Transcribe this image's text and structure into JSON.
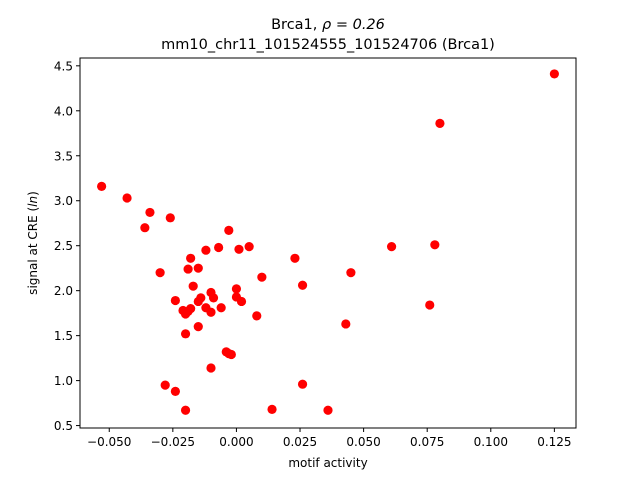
{
  "chart_data": {
    "type": "scatter",
    "title_line1_prefix": "Brca1, ",
    "title_line1_rho": "ρ = 0.26",
    "title_line2": "mm10_chr11_101524555_101524706 (Brca1)",
    "xlabel": "motif activity",
    "ylabel_prefix": "signal at CRE (",
    "ylabel_italic": "ln",
    "ylabel_suffix": ")",
    "xlim": [
      -0.0615,
      0.1335
    ],
    "ylim": [
      0.473,
      4.587
    ],
    "xticks": [
      {
        "value": -0.05,
        "label": "−0.050"
      },
      {
        "value": -0.025,
        "label": "−0.025"
      },
      {
        "value": 0.0,
        "label": "0.000"
      },
      {
        "value": 0.025,
        "label": "0.025"
      },
      {
        "value": 0.05,
        "label": "0.050"
      },
      {
        "value": 0.075,
        "label": "0.075"
      },
      {
        "value": 0.1,
        "label": "0.100"
      },
      {
        "value": 0.125,
        "label": "0.125"
      }
    ],
    "yticks": [
      {
        "value": 0.5,
        "label": "0.5"
      },
      {
        "value": 1.0,
        "label": "1.0"
      },
      {
        "value": 1.5,
        "label": "1.5"
      },
      {
        "value": 2.0,
        "label": "2.0"
      },
      {
        "value": 2.5,
        "label": "2.5"
      },
      {
        "value": 3.0,
        "label": "3.0"
      },
      {
        "value": 3.5,
        "label": "3.5"
      },
      {
        "value": 4.0,
        "label": "4.0"
      },
      {
        "value": 4.5,
        "label": "4.5"
      }
    ],
    "marker_color": "#ff0000",
    "grid": false,
    "legend": "none",
    "points": [
      [
        -0.053,
        3.16
      ],
      [
        -0.043,
        3.03
      ],
      [
        -0.034,
        2.87
      ],
      [
        -0.036,
        2.7
      ],
      [
        -0.026,
        2.81
      ],
      [
        -0.03,
        2.2
      ],
      [
        -0.018,
        2.36
      ],
      [
        -0.019,
        2.24
      ],
      [
        -0.015,
        2.25
      ],
      [
        -0.012,
        2.45
      ],
      [
        -0.007,
        2.48
      ],
      [
        -0.003,
        2.67
      ],
      [
        0.001,
        2.46
      ],
      [
        0.005,
        2.49
      ],
      [
        0.01,
        2.15
      ],
      [
        -0.017,
        2.05
      ],
      [
        -0.024,
        1.89
      ],
      [
        -0.014,
        1.92
      ],
      [
        -0.015,
        1.88
      ],
      [
        -0.01,
        1.98
      ],
      [
        -0.009,
        1.92
      ],
      [
        -0.012,
        1.81
      ],
      [
        -0.018,
        1.8
      ],
      [
        -0.019,
        1.77
      ],
      [
        -0.02,
        1.74
      ],
      [
        -0.021,
        1.78
      ],
      [
        -0.01,
        1.76
      ],
      [
        -0.006,
        1.81
      ],
      [
        0.0,
        2.02
      ],
      [
        0.0,
        1.93
      ],
      [
        0.002,
        1.88
      ],
      [
        0.008,
        1.72
      ],
      [
        -0.015,
        1.6
      ],
      [
        -0.02,
        1.52
      ],
      [
        -0.004,
        1.32
      ],
      [
        -0.002,
        1.29
      ],
      [
        -0.003,
        1.3
      ],
      [
        -0.01,
        1.14
      ],
      [
        -0.028,
        0.95
      ],
      [
        -0.024,
        0.88
      ],
      [
        -0.02,
        0.67
      ],
      [
        0.014,
        0.68
      ],
      [
        0.023,
        2.36
      ],
      [
        0.026,
        2.06
      ],
      [
        0.026,
        0.96
      ],
      [
        0.036,
        0.67
      ],
      [
        0.043,
        1.63
      ],
      [
        0.045,
        2.2
      ],
      [
        0.061,
        2.49
      ],
      [
        0.076,
        1.84
      ],
      [
        0.078,
        2.51
      ],
      [
        0.08,
        3.86
      ],
      [
        0.125,
        4.41
      ]
    ]
  }
}
